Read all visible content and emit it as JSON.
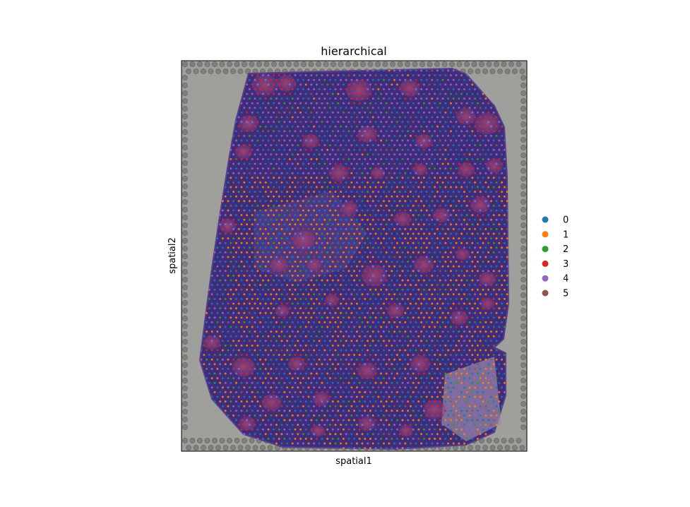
{
  "chart_data": {
    "type": "scatter",
    "title": "hierarchical",
    "xlabel": "spatial1",
    "ylabel": "spatial2",
    "background": "spatial transcriptomics tissue image",
    "grid": false,
    "ticks": false,
    "legend": {
      "placement": "right",
      "entries": [
        {
          "label": "0",
          "color": "#1f77b4"
        },
        {
          "label": "1",
          "color": "#ff7f0e"
        },
        {
          "label": "2",
          "color": "#2ca02c"
        },
        {
          "label": "3",
          "color": "#d62728"
        },
        {
          "label": "4",
          "color": "#9467bd"
        },
        {
          "label": "5",
          "color": "#8c564b"
        }
      ]
    },
    "clusters": [
      "0",
      "1",
      "2",
      "3",
      "4",
      "5"
    ]
  }
}
